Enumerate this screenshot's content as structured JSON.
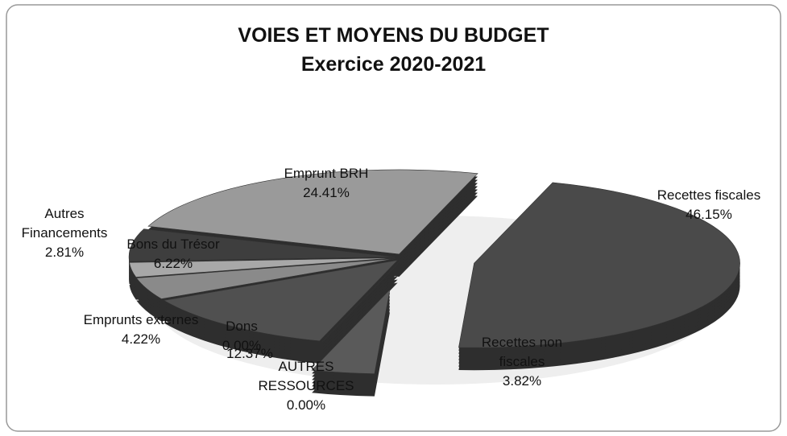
{
  "chart_data": {
    "type": "pie",
    "title": "VOIES ET MOYENS DU BUDGET",
    "subtitle": "Exercice 2020-2021",
    "categories": [
      "Recettes fiscales",
      "Recettes non fiscales",
      "AUTRES RESSOURCES",
      "Dons",
      null,
      "Emprunts externes",
      "Autres Financements",
      "Bons du Trésor",
      "Emprunt BRH"
    ],
    "values": [
      46.15,
      3.82,
      0.0,
      0.0,
      12.37,
      4.22,
      2.81,
      6.22,
      24.41
    ],
    "value_labels": [
      "46.15%",
      "3.82%",
      "0.00%",
      "0.00%",
      "12.37%",
      "4.22%",
      "2.81%",
      "6.22%",
      "24.41%"
    ],
    "colors": [
      "#4a4a4a",
      "#5a5a5a",
      "#666666",
      "#777777",
      "#505050",
      "#8a8a8a",
      "#a8a8a8",
      "#3e3e3e",
      "#9a9a9a"
    ]
  }
}
